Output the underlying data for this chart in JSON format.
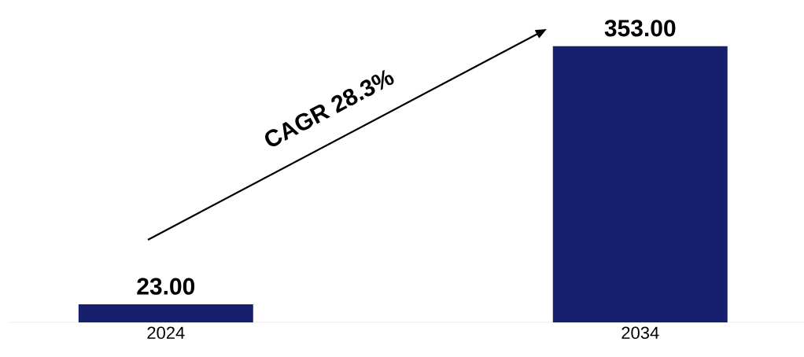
{
  "chart_data": {
    "type": "bar",
    "categories": [
      "2024",
      "2034"
    ],
    "values": [
      23,
      353
    ],
    "value_labels": [
      "23.00",
      "353.00"
    ],
    "color": "#16206e",
    "annotations": [
      "CAGR 28.3%"
    ]
  }
}
